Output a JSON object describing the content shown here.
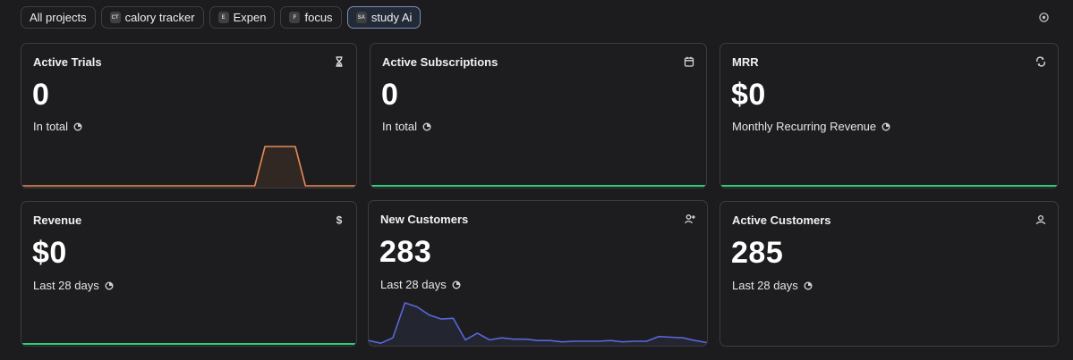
{
  "tabs": [
    {
      "label": "All projects",
      "badge": ""
    },
    {
      "label": "calory tracker",
      "badge": "CT"
    },
    {
      "label": "Expen",
      "badge": "E"
    },
    {
      "label": "focus",
      "badge": "F"
    },
    {
      "label": "study Ai",
      "badge": "SA"
    }
  ],
  "colors": {
    "orange": "#e58a58",
    "green": "#2ccf79",
    "blue": "#5a67d8"
  },
  "cards": {
    "active_trials": {
      "title": "Active Trials",
      "value": "0",
      "subtitle": "In total",
      "icon": "hourglass-icon"
    },
    "active_subscriptions": {
      "title": "Active Subscriptions",
      "value": "0",
      "subtitle": "In total",
      "icon": "calendar-icon"
    },
    "mrr": {
      "title": "MRR",
      "value": "$0",
      "subtitle": "Monthly Recurring Revenue",
      "icon": "refresh-icon"
    },
    "revenue": {
      "title": "Revenue",
      "value": "$0",
      "subtitle": "Last 28 days",
      "icon": "dollar-icon"
    },
    "new_customers": {
      "title": "New Customers",
      "value": "283",
      "subtitle": "Last 28 days",
      "icon": "add-user-icon"
    },
    "active_customers": {
      "title": "Active Customers",
      "value": "285",
      "subtitle": "Last 28 days",
      "icon": "user-icon"
    }
  },
  "sparklines": {
    "active_trials": [
      0,
      0,
      0,
      0,
      0,
      0,
      0,
      0,
      0,
      0,
      0,
      0,
      0,
      0,
      0,
      0,
      0,
      0,
      0,
      0,
      0,
      0,
      0,
      0,
      1,
      1,
      1,
      1,
      0,
      0,
      0,
      0,
      0,
      0
    ],
    "new_customers": [
      5,
      1,
      9,
      61,
      55,
      43,
      37,
      38,
      6,
      16,
      6,
      9,
      7,
      7,
      5,
      5,
      3,
      4,
      4,
      4,
      5,
      3,
      4,
      4,
      11,
      10,
      9,
      5,
      2
    ]
  }
}
